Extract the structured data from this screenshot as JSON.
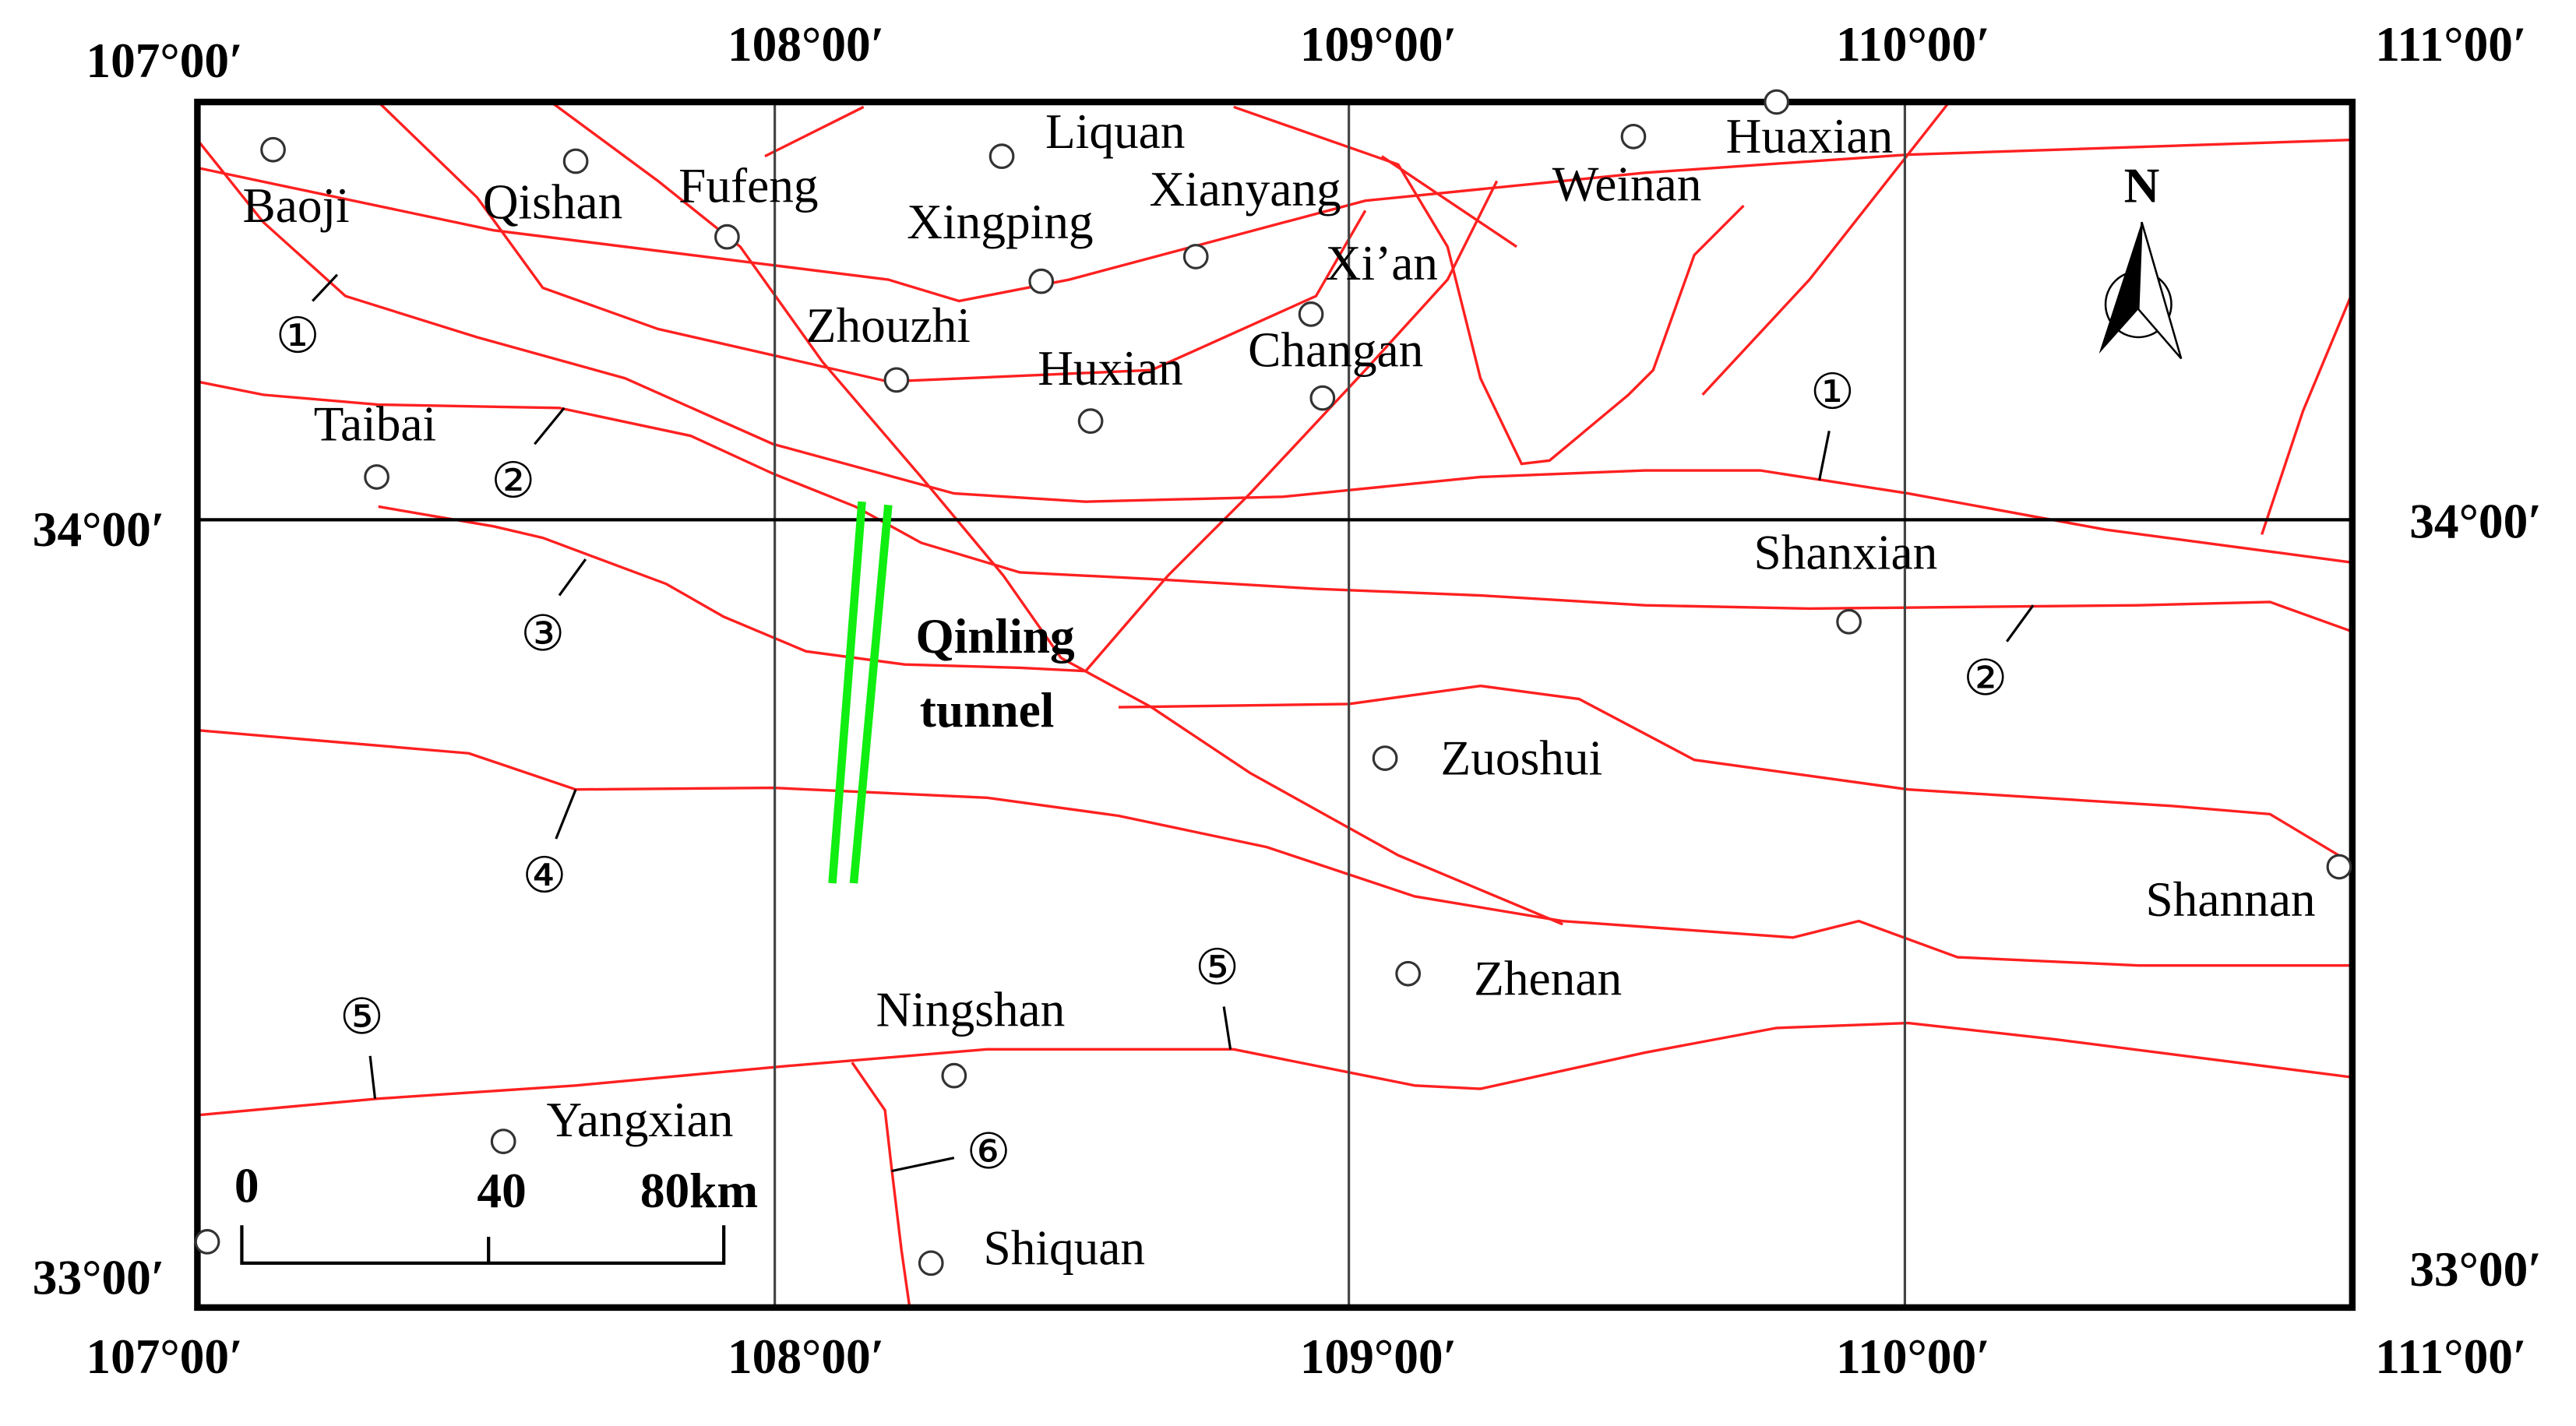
{
  "coordinates": {
    "top": [
      "107°00′",
      "108°00′",
      "109°00′",
      "110°00′",
      "111°00′"
    ],
    "bottom": [
      "107°00′",
      "108°00′",
      "109°00′",
      "110°00′",
      "111°00′"
    ],
    "left": [
      "34°00′",
      "33°00′"
    ],
    "right": [
      "34°00′",
      "33°00′"
    ]
  },
  "towns": [
    "Baoji",
    "Qishan",
    "Fufeng",
    "Liquan",
    "Xingping",
    "Xianyang",
    "Xi’an",
    "Weinan",
    "Huaxian",
    "Zhouzhi",
    "Huxian",
    "Changan",
    "Taibai",
    "Shanxian",
    "Zuoshui",
    "Shannan",
    "Zhenan",
    "Ningshan",
    "Yangxian",
    "Shiquan"
  ],
  "faults": [
    "①",
    "②",
    "③",
    "④",
    "⑤",
    "⑤",
    "⑥",
    "①",
    "②"
  ],
  "tunnel": [
    "Qinling",
    "tunnel"
  ],
  "scale_bar": [
    "0",
    "40",
    "80km"
  ],
  "north": "N"
}
